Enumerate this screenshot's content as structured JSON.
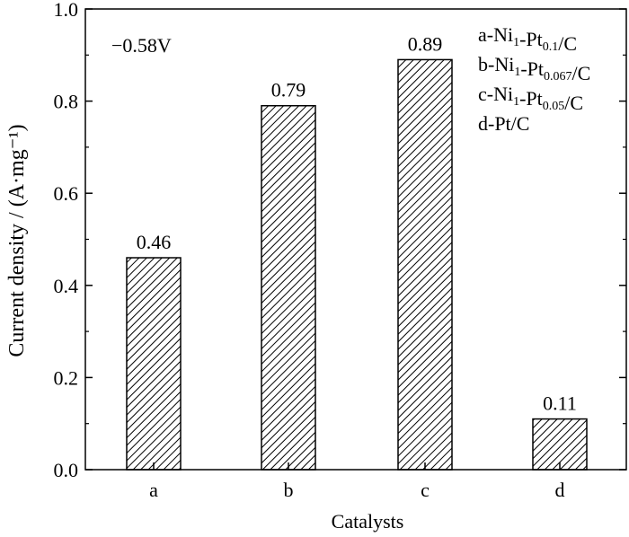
{
  "chart_data": {
    "type": "bar",
    "categories": [
      "a",
      "b",
      "c",
      "d"
    ],
    "values": [
      0.46,
      0.79,
      0.89,
      0.11
    ],
    "value_labels": [
      "0.46",
      "0.79",
      "0.89",
      "0.11"
    ],
    "xlabel": "Catalysts",
    "ylabel": "Current density / (A·mg⁻¹)",
    "ylim": [
      0,
      1.0
    ],
    "yticks": [
      "0.0",
      "0.2",
      "0.4",
      "0.6",
      "0.8",
      "1.0"
    ],
    "annotation": "−0.58V",
    "bar_fill": "hatched (diagonal black lines on white)",
    "legend": [
      {
        "prefix": "a-Ni",
        "sub1": "1",
        "mid": "-Pt",
        "sub2": "0.1",
        "suffix": "/C"
      },
      {
        "prefix": "b-Ni",
        "sub1": "1",
        "mid": "-Pt",
        "sub2": "0.067",
        "suffix": "/C"
      },
      {
        "prefix": "c-Ni",
        "sub1": "1",
        "mid": "-Pt",
        "sub2": "0.05",
        "suffix": "/C"
      },
      {
        "prefix": "d-Pt/C",
        "sub1": "",
        "mid": "",
        "sub2": "",
        "suffix": ""
      }
    ],
    "legend_position": "top-right",
    "grid": false
  }
}
